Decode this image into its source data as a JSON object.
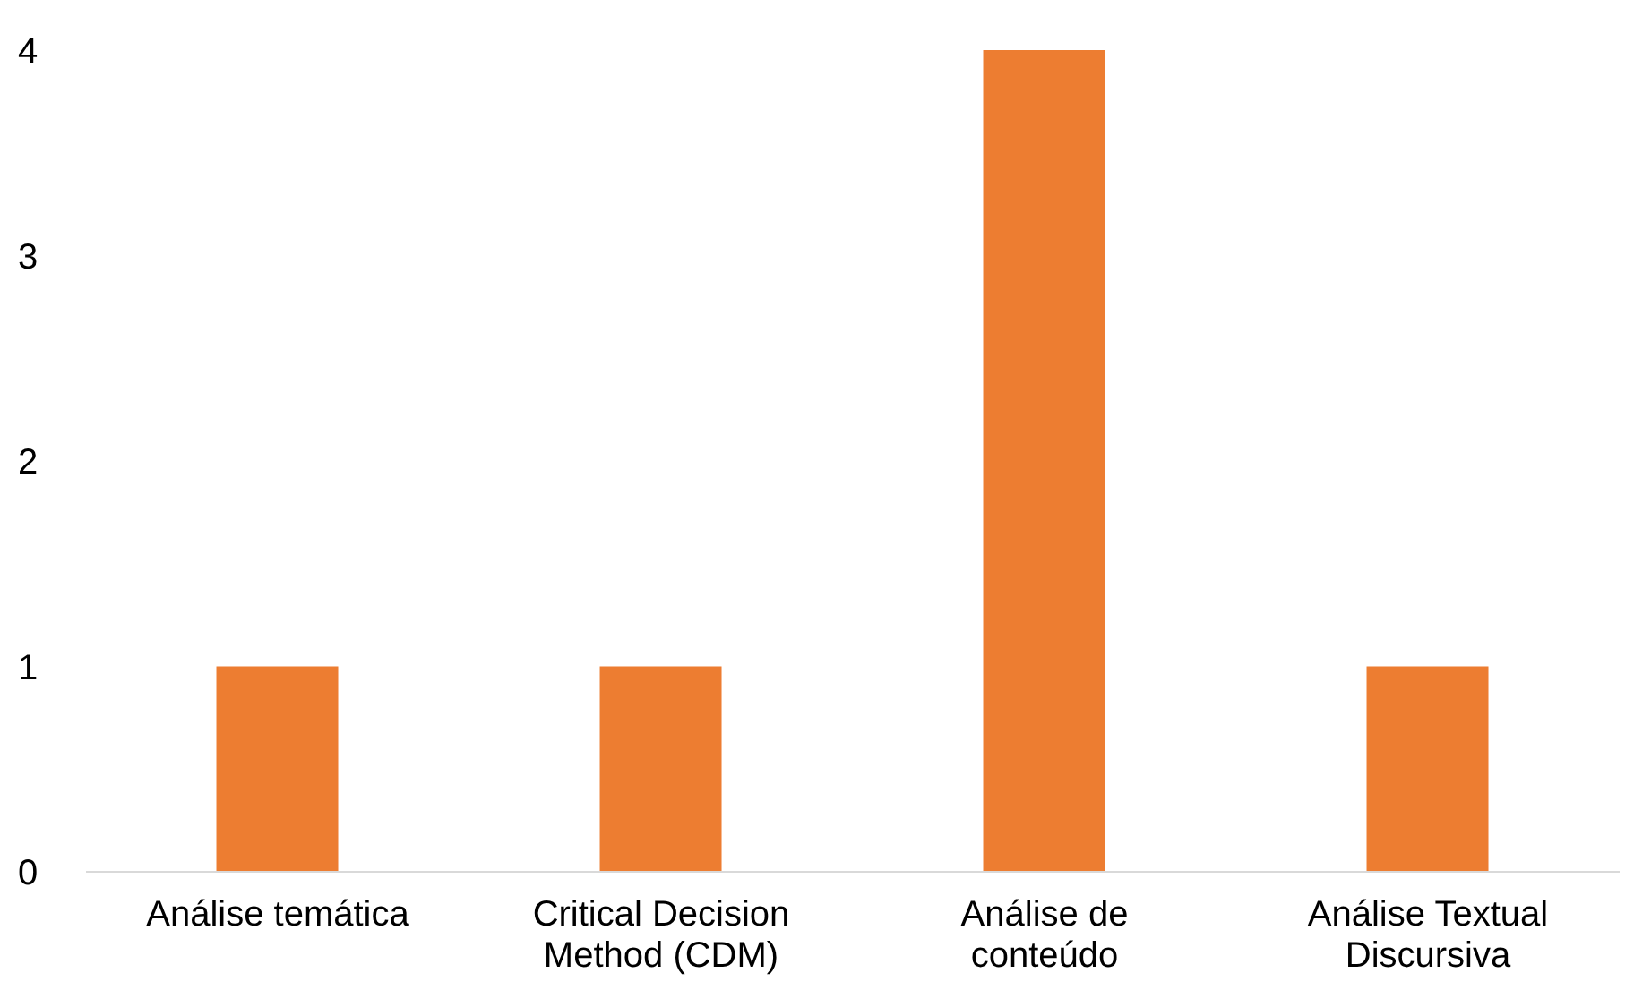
{
  "chart_data": {
    "type": "bar",
    "categories": [
      "Análise temática",
      "Critical Decision Method (CDM)",
      "Análise de conteúdo",
      "Análise Textual Discursiva"
    ],
    "values": [
      1,
      1,
      4,
      1
    ],
    "color": "#ed7d31",
    "ylim": [
      0,
      4
    ],
    "yticks": [
      0,
      1,
      2,
      3,
      4
    ]
  }
}
